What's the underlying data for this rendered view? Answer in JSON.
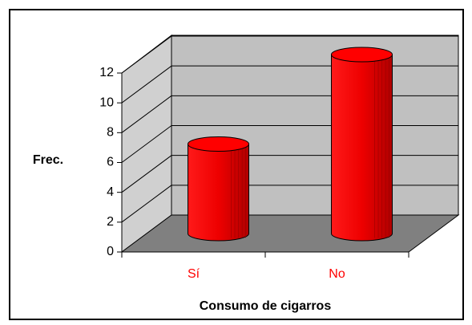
{
  "chart_data": {
    "type": "bar",
    "categories": [
      "Sí",
      "No"
    ],
    "values": [
      6,
      12
    ],
    "color": "#ff0000",
    "ylim": [
      0,
      12
    ],
    "yticks": [
      0,
      2,
      4,
      6,
      8,
      10,
      12
    ],
    "grid": true,
    "y_label": "Frec.",
    "x_label": "Consumo de cigarros"
  }
}
